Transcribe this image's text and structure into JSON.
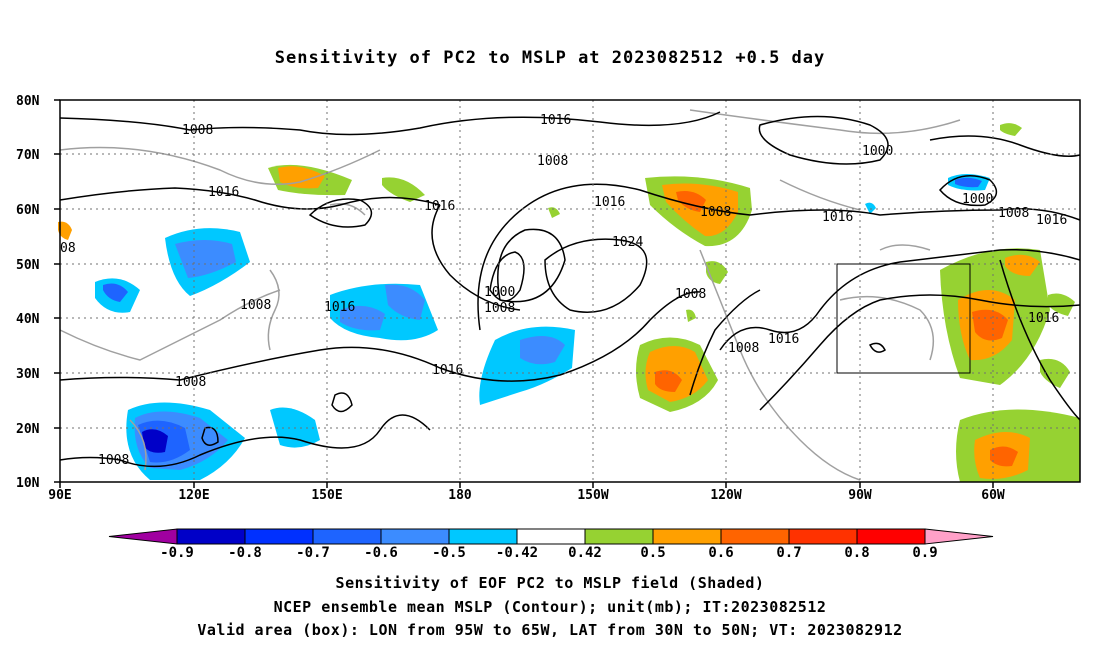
{
  "title": "Sensitivity of PC2 to MSLP at 2023082512 +0.5 day",
  "lat_ticks": [
    "80N",
    "70N",
    "60N",
    "50N",
    "40N",
    "30N",
    "20N",
    "10N"
  ],
  "lon_ticks": [
    "90E",
    "120E",
    "150E",
    "180",
    "150W",
    "120W",
    "90W",
    "60W"
  ],
  "colorbar": {
    "labels": [
      "-0.9",
      "-0.8",
      "-0.7",
      "-0.6",
      "-0.5",
      "-0.42",
      "0.42",
      "0.5",
      "0.6",
      "0.7",
      "0.8",
      "0.9"
    ],
    "colors": [
      "#a000a0",
      "#0000c8",
      "#0030ff",
      "#1e64ff",
      "#3c8cff",
      "#00c8ff",
      "#ffffff",
      "#96d232",
      "#ffa000",
      "#ff6400",
      "#ff3200",
      "#ff0000",
      "#ffa0c8"
    ]
  },
  "contour_labels": [
    "1008",
    "1016",
    "1008",
    "1016",
    "1000",
    "1008",
    "1016",
    "1016",
    "1008",
    "1024",
    "1000",
    "1008",
    "1016",
    "1008",
    "1016",
    "1008",
    "1008",
    "1016",
    "1000",
    "1008",
    "1016",
    "1016",
    "1008",
    "1016",
    "08"
  ],
  "valid_box": {
    "lon_min": -95,
    "lon_max": -65,
    "lat_min": 30,
    "lat_max": 50
  },
  "captions": {
    "line1": "Sensitivity of EOF PC2 to MSLP field (Shaded)",
    "line2": "NCEP ensemble mean MSLP (Contour); unit(mb); IT:2023082512",
    "line3": "Valid area (box): LON from 95W to 65W, LAT from 30N to 50N; VT: 2023082912"
  }
}
